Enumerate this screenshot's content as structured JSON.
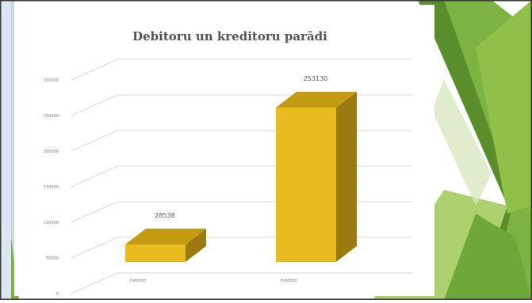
{
  "chart_data": {
    "type": "bar",
    "title": "Debitoru un kreditoru parādi",
    "categories": [
      "Debitori",
      "Kreditori"
    ],
    "values": [
      28538,
      253130
    ],
    "data_labels": [
      "28538",
      "253130"
    ],
    "ylim": [
      0,
      300000
    ],
    "yticks": [
      0,
      50000,
      100000,
      150000,
      200000,
      250000,
      300000
    ],
    "ytick_labels": [
      "0",
      "50000",
      "100000",
      "150000",
      "200000",
      "250000",
      "300000"
    ],
    "bar_style": "3d-column",
    "grid": true,
    "legend": "none",
    "colors": {
      "bar_front": "#E8BC1E",
      "bar_top": "#C49A12",
      "bar_side": "#9C7A12",
      "grid": "#d9d9d9",
      "axis_text": "#7f7f7f",
      "left_stripe": "#dce6f0",
      "accent_green_dark": "#5a8e2a",
      "accent_green": "#7cb342",
      "accent_green_light": "#a5cc60",
      "frame_border": "#3a3a3a"
    }
  }
}
